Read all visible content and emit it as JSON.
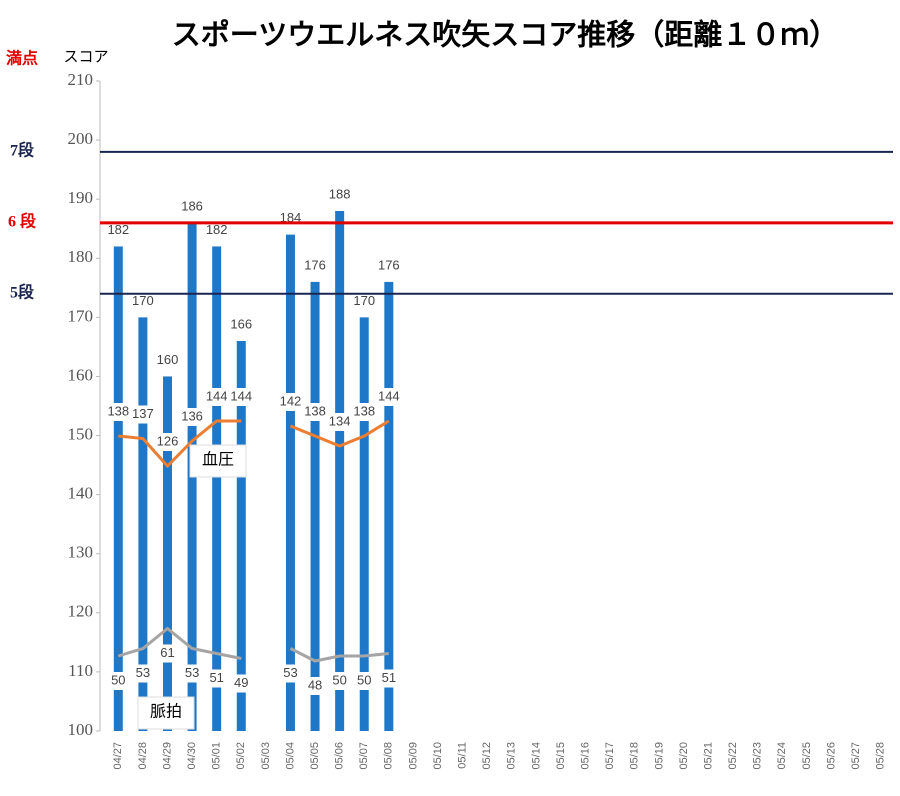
{
  "chart_data": {
    "type": "bar",
    "title": "スポーツウエルネス吹矢スコア推移（距離１０ｍ）",
    "ylabel": "スコア",
    "top_label": {
      "text": "満点",
      "color": "#e00000"
    },
    "categories": [
      "04/27",
      "04/28",
      "04/29",
      "04/30",
      "05/01",
      "05/02",
      "05/03",
      "05/04",
      "05/05",
      "05/06",
      "05/07",
      "05/08",
      "05/09",
      "05/10",
      "05/11",
      "05/12",
      "05/13",
      "05/14",
      "05/15",
      "05/16",
      "05/17",
      "05/18",
      "05/19",
      "05/20",
      "05/21",
      "05/22",
      "05/23",
      "05/24",
      "05/25",
      "05/26",
      "05/27",
      "05/28"
    ],
    "series": [
      {
        "type": "bar",
        "color": "#1f77c8",
        "values": [
          182,
          170,
          160,
          186,
          182,
          166,
          null,
          184,
          176,
          188,
          170,
          176,
          null,
          null,
          null,
          null,
          null,
          null,
          null,
          null,
          null,
          null,
          null,
          null,
          null,
          null,
          null,
          null,
          null,
          null,
          null,
          null
        ]
      },
      {
        "type": "line",
        "name": "血圧",
        "color": "#ed7d31",
        "axis": "y2",
        "values": [
          138,
          137,
          126,
          136,
          144,
          144,
          null,
          142,
          138,
          134,
          138,
          144,
          null,
          null,
          null,
          null,
          null,
          null,
          null,
          null,
          null,
          null,
          null,
          null,
          null,
          null,
          null,
          null,
          null,
          null,
          null,
          null
        ]
      },
      {
        "type": "line",
        "name": "脈拍",
        "color": "#a5a5a5",
        "axis": "y2",
        "values": [
          50,
          53,
          61,
          53,
          51,
          49,
          null,
          53,
          48,
          50,
          50,
          51,
          null,
          null,
          null,
          null,
          null,
          null,
          null,
          null,
          null,
          null,
          null,
          null,
          null,
          null,
          null,
          null,
          null,
          null,
          null,
          null
        ]
      }
    ],
    "ylim": [
      100,
      210
    ],
    "yticks": [
      100,
      110,
      120,
      130,
      140,
      150,
      160,
      170,
      180,
      190,
      200,
      210
    ],
    "y2lim": [
      20,
      280
    ],
    "reference_lines": [
      {
        "label": "7段",
        "value": 198,
        "color": "#1a2550"
      },
      {
        "label": "6 段",
        "value": 186,
        "color": "#e00000"
      },
      {
        "label": "5段",
        "value": 174,
        "color": "#1a2550"
      }
    ]
  }
}
